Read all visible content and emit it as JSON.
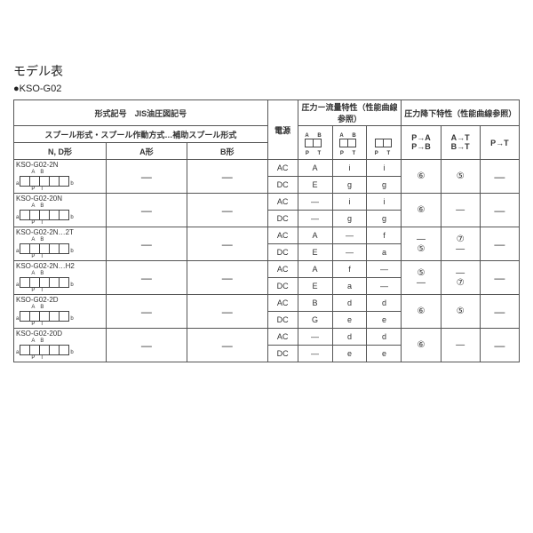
{
  "title": "モデル表",
  "subtitle": "●KSO-G02",
  "headers": {
    "format_code": "形式記号　JIS油圧図記号",
    "spool": "スプール形式・スプール作動方式…補助スプール形式",
    "n_d": "N, D形",
    "a": "A形",
    "b": "B形",
    "power": "電源",
    "flow_char": "圧力ー流量特性（性能曲線参照）",
    "pressure_drop": "圧力降下特性（性能曲線参照）",
    "pa_pb": "P→A\nP→B",
    "at_bt": "A→T\nB→T",
    "pt": "P→T"
  },
  "icon_labels": {
    "ab": "AB",
    "pt": "PT"
  },
  "rows": [
    {
      "model": "KSO-G02-2N",
      "a": "—",
      "b": "—",
      "ac": [
        "A",
        "i",
        "i"
      ],
      "dc": [
        "E",
        "g",
        "g"
      ],
      "pa": "⑥",
      "at": "⑤",
      "pt": "—"
    },
    {
      "model": "KSO-G02-20N",
      "a": "—",
      "b": "—",
      "ac": [
        "—",
        "i",
        "i"
      ],
      "dc": [
        "—",
        "g",
        "g"
      ],
      "pa": "⑥",
      "at": "—",
      "pt": "—"
    },
    {
      "model": "KSO-G02-2N…2T",
      "a": "—",
      "b": "—",
      "ac": [
        "A",
        "—",
        "f"
      ],
      "dc": [
        "E",
        "—",
        "a"
      ],
      "pa": "—\n⑤",
      "at": "⑦\n—",
      "pt": "—"
    },
    {
      "model": "KSO-G02-2N…H2",
      "a": "—",
      "b": "—",
      "ac": [
        "A",
        "f",
        "—"
      ],
      "dc": [
        "E",
        "a",
        "—"
      ],
      "pa": "⑤\n—",
      "at": "—\n⑦",
      "pt": "—"
    },
    {
      "model": "KSO-G02-2D",
      "a": "—",
      "b": "—",
      "ac": [
        "B",
        "d",
        "d"
      ],
      "dc": [
        "G",
        "e",
        "e"
      ],
      "pa": "⑥",
      "at": "⑤",
      "pt": "—"
    },
    {
      "model": "KSO-G02-20D",
      "a": "—",
      "b": "—",
      "ac": [
        "—",
        "d",
        "d"
      ],
      "dc": [
        "—",
        "e",
        "e"
      ],
      "pa": "⑥",
      "at": "—",
      "pt": "—"
    }
  ],
  "ps": {
    "AC": "AC",
    "DC": "DC"
  }
}
